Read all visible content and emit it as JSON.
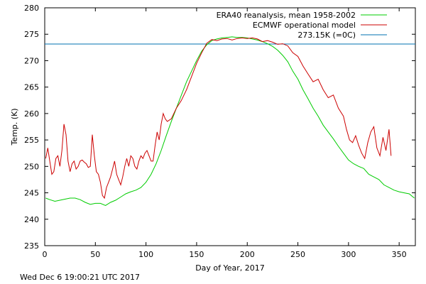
{
  "chart_data": {
    "type": "line",
    "xlabel": "Day of Year, 2017",
    "ylabel": "Temp. (K)",
    "xlim": [
      0,
      366
    ],
    "ylim": [
      235,
      280
    ],
    "xticks": [
      0,
      50,
      100,
      150,
      200,
      250,
      300,
      350
    ],
    "yticks": [
      235,
      240,
      245,
      250,
      255,
      260,
      265,
      270,
      275,
      280
    ],
    "grid": false,
    "legend_position": "top-right",
    "series": [
      {
        "name": "ERA40 reanalysis, mean 1958-2002",
        "color": "#00cc00",
        "x": [
          1,
          5,
          10,
          15,
          20,
          25,
          30,
          35,
          40,
          45,
          50,
          55,
          60,
          65,
          70,
          75,
          80,
          85,
          90,
          95,
          100,
          105,
          110,
          115,
          120,
          125,
          130,
          135,
          140,
          145,
          150,
          155,
          160,
          165,
          170,
          175,
          180,
          185,
          190,
          195,
          200,
          205,
          210,
          215,
          220,
          225,
          230,
          235,
          240,
          245,
          250,
          255,
          260,
          265,
          270,
          275,
          280,
          285,
          290,
          295,
          300,
          305,
          310,
          315,
          320,
          325,
          330,
          335,
          340,
          345,
          350,
          355,
          360,
          365
        ],
        "values": [
          244.0,
          243.7,
          243.4,
          243.6,
          243.8,
          244.0,
          244.0,
          243.7,
          243.2,
          242.8,
          243.0,
          243.0,
          242.6,
          243.2,
          243.6,
          244.2,
          244.8,
          245.2,
          245.5,
          246.0,
          247.0,
          248.5,
          250.5,
          253.0,
          255.8,
          258.5,
          261.0,
          263.5,
          266.0,
          268.0,
          270.0,
          271.8,
          273.0,
          273.8,
          274.1,
          274.3,
          274.4,
          274.5,
          274.4,
          274.4,
          274.3,
          274.1,
          273.9,
          273.6,
          273.2,
          272.7,
          272.0,
          271.0,
          269.8,
          268.0,
          266.5,
          264.5,
          262.8,
          261.0,
          259.5,
          257.8,
          256.5,
          255.2,
          253.8,
          252.5,
          251.2,
          250.5,
          250.0,
          249.6,
          248.5,
          248.0,
          247.5,
          246.5,
          246.0,
          245.5,
          245.2,
          245.0,
          244.8,
          244.0
        ]
      },
      {
        "name": "ECMWF operational model",
        "color": "#cc0000",
        "x": [
          1,
          3,
          5,
          7,
          9,
          11,
          13,
          15,
          17,
          19,
          21,
          23,
          25,
          27,
          29,
          31,
          33,
          35,
          37,
          39,
          41,
          43,
          45,
          47,
          49,
          51,
          53,
          55,
          57,
          59,
          61,
          63,
          65,
          67,
          69,
          71,
          73,
          75,
          77,
          79,
          81,
          83,
          85,
          87,
          89,
          91,
          93,
          95,
          97,
          99,
          101,
          103,
          105,
          107,
          109,
          111,
          113,
          115,
          117,
          119,
          121,
          125,
          130,
          135,
          140,
          145,
          150,
          155,
          160,
          165,
          170,
          175,
          180,
          185,
          190,
          195,
          200,
          205,
          210,
          215,
          220,
          225,
          230,
          235,
          240,
          245,
          250,
          255,
          260,
          265,
          270,
          275,
          280,
          285,
          290,
          295,
          298,
          301,
          304,
          307,
          310,
          313,
          316,
          319,
          322,
          325,
          328,
          331,
          334,
          337,
          340,
          342
        ],
        "values": [
          251.5,
          253.5,
          251.0,
          248.5,
          249.0,
          251.5,
          252.0,
          250.0,
          253.0,
          258.0,
          256.0,
          251.0,
          249.0,
          250.5,
          251.0,
          249.5,
          250.0,
          251.0,
          251.2,
          250.8,
          250.5,
          249.8,
          250.0,
          256.0,
          252.0,
          249.0,
          248.5,
          247.0,
          244.5,
          244.0,
          246.0,
          247.0,
          248.0,
          249.5,
          251.0,
          248.5,
          247.5,
          246.5,
          248.0,
          250.0,
          251.5,
          250.0,
          252.0,
          251.5,
          250.0,
          249.5,
          251.0,
          252.0,
          251.5,
          252.5,
          253.0,
          252.0,
          251.0,
          251.0,
          254.0,
          256.5,
          255.0,
          258.0,
          260.0,
          259.0,
          258.5,
          259.0,
          261.0,
          262.5,
          264.5,
          267.0,
          269.5,
          271.5,
          273.3,
          274.0,
          273.8,
          274.1,
          274.2,
          273.9,
          274.2,
          274.3,
          274.2,
          274.3,
          274.1,
          273.6,
          273.8,
          273.5,
          273.1,
          273.2,
          272.8,
          271.5,
          270.8,
          269.0,
          267.5,
          266.0,
          266.5,
          264.5,
          263.0,
          263.5,
          261.0,
          259.5,
          257.0,
          255.0,
          254.5,
          255.8,
          254.0,
          252.5,
          251.5,
          254.5,
          256.5,
          257.5,
          253.5,
          252.0,
          255.5,
          253.0,
          257.0,
          252.0
        ]
      },
      {
        "name": "273.15K (=0C)",
        "color": "#0070b0",
        "x": [
          0,
          366
        ],
        "values": [
          273.15,
          273.15
        ]
      }
    ]
  },
  "footer": {
    "timestamp": "Wed Dec  6 19:00:21 UTC 2017"
  }
}
